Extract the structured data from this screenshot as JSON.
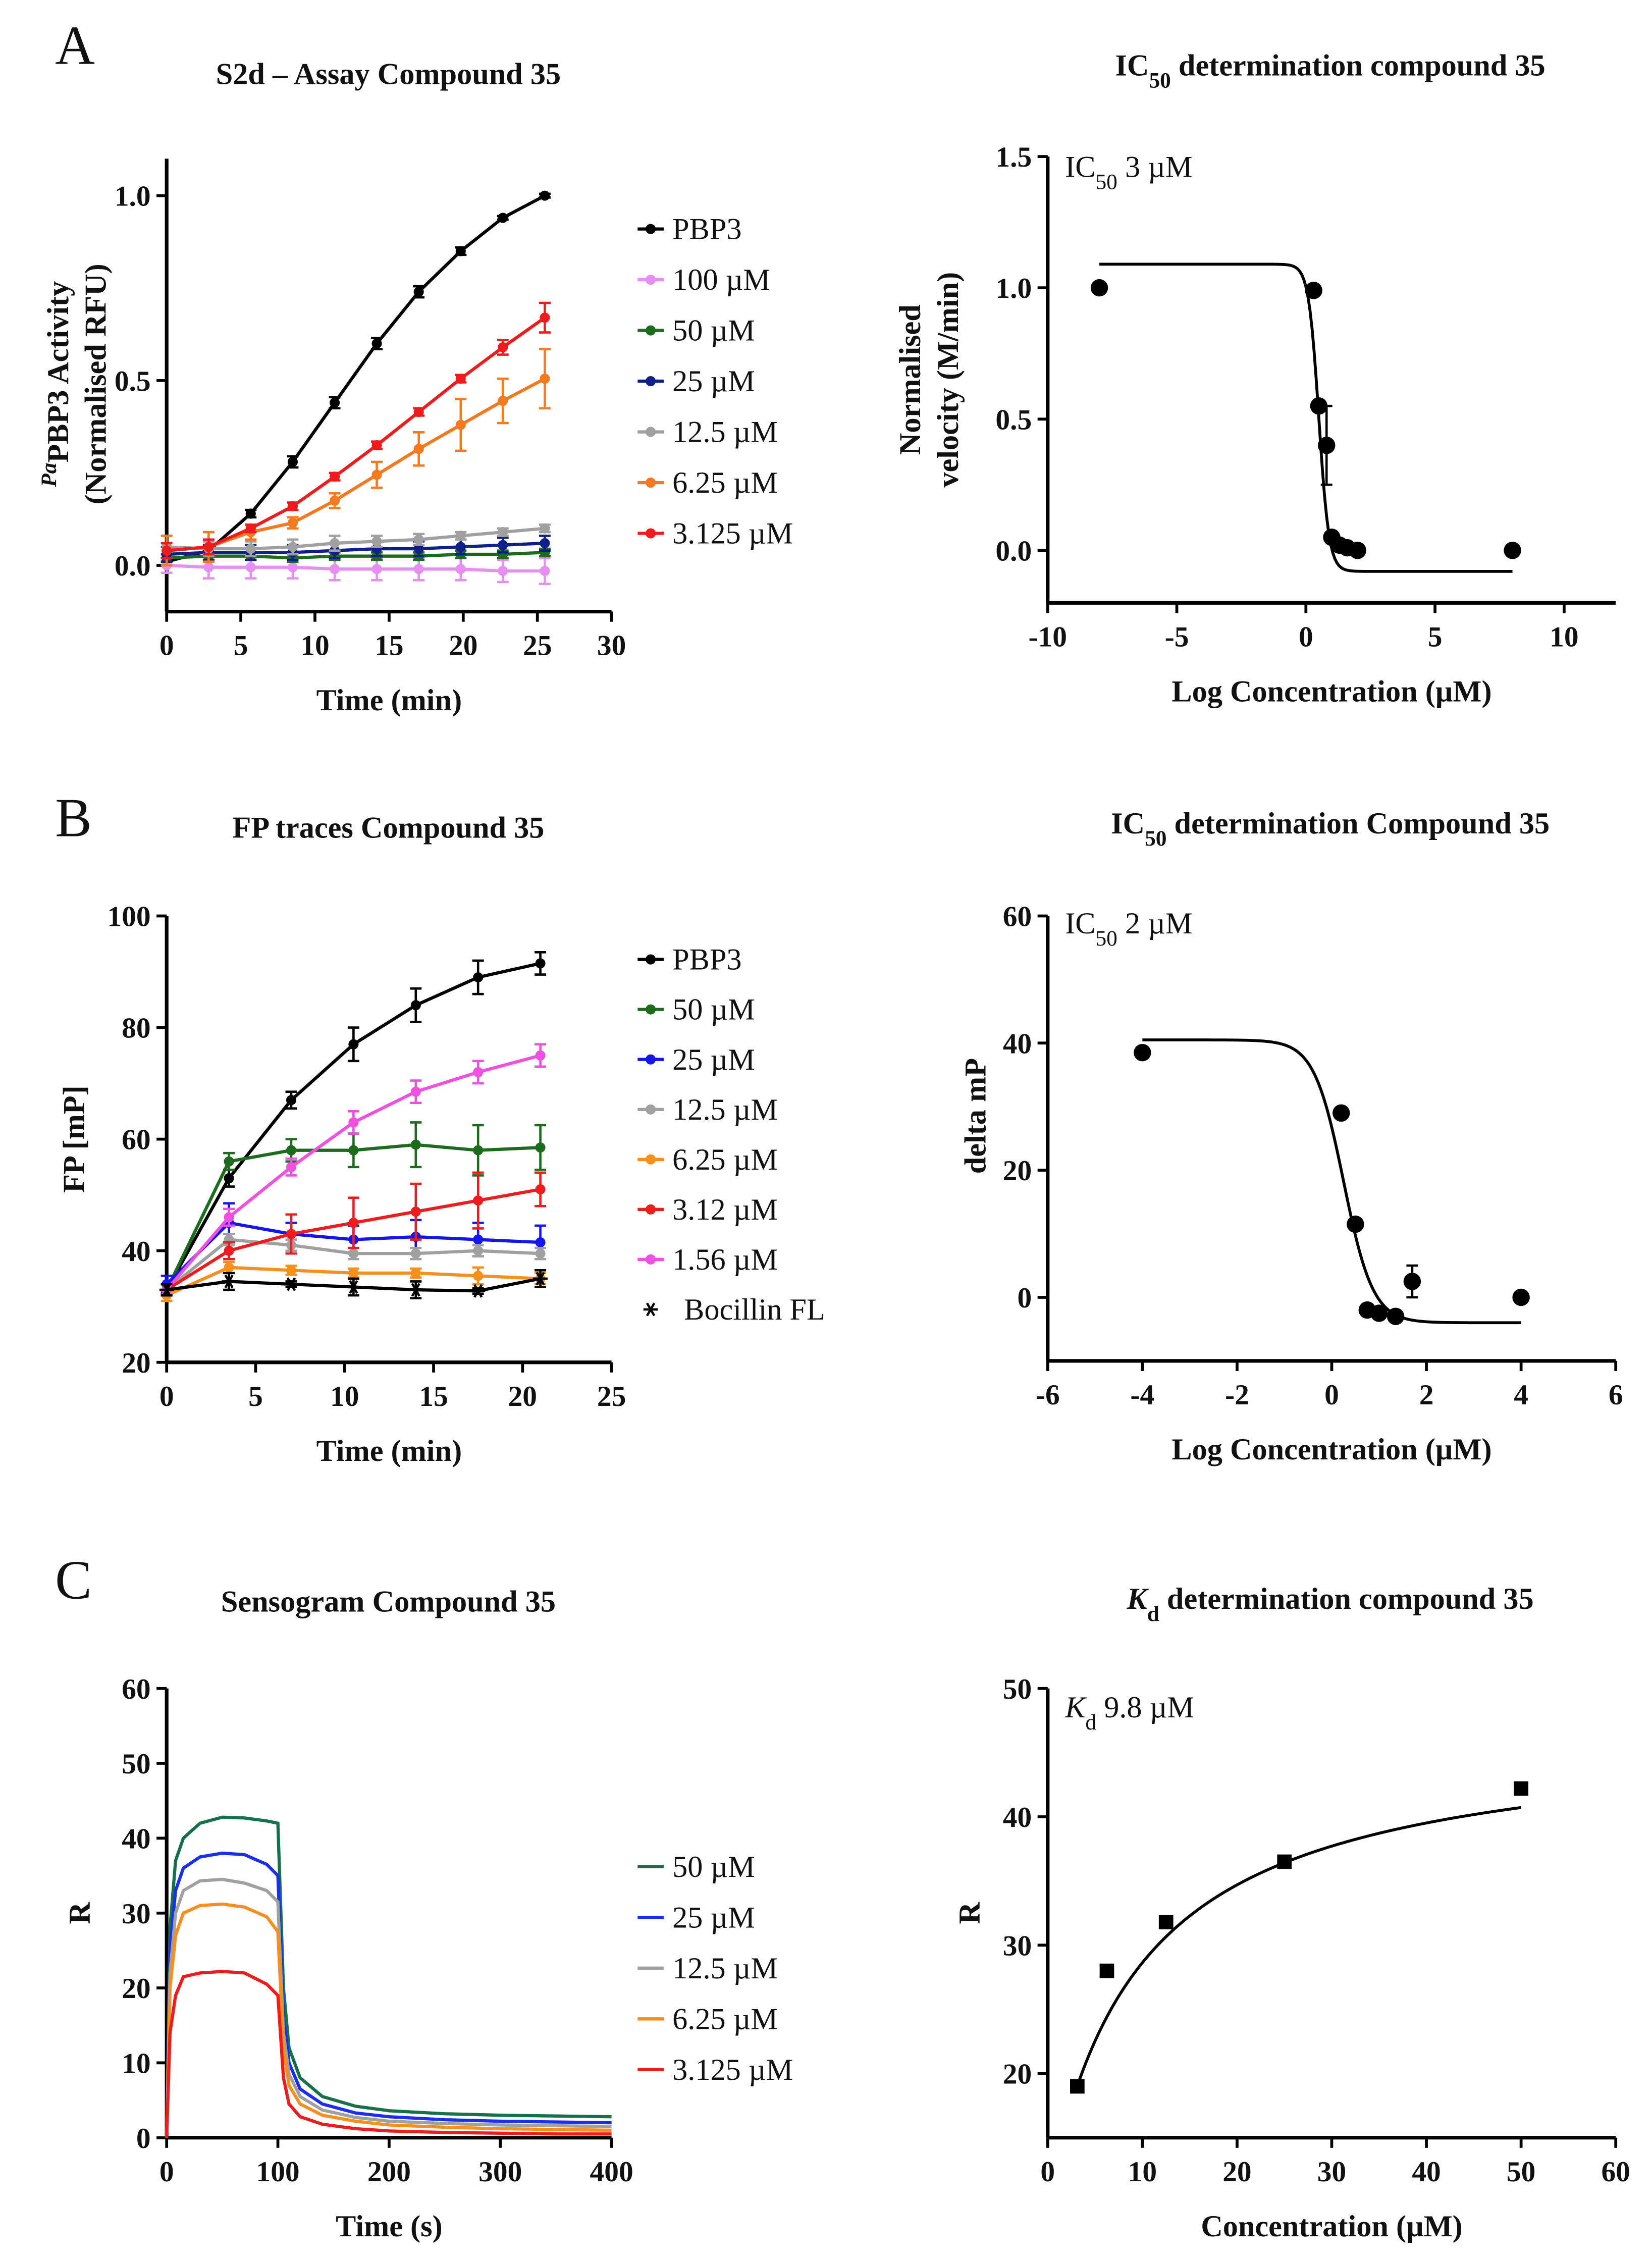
{
  "chart_data": [
    {
      "panel": "A",
      "type": "line",
      "title_parts": [
        {
          "t": "S2d – Assay Compound 35"
        }
      ],
      "xlabel": "Time (min)",
      "ylabel_parts": [
        [
          {
            "t": "Pa",
            "sup": true
          },
          {
            "t": "PBP3 Activity"
          }
        ],
        [
          {
            "t": "(Normalised RFU)"
          }
        ]
      ],
      "xlim": [
        0,
        30
      ],
      "ylim": [
        -0.125,
        1.1
      ],
      "xticks": [
        "0",
        "5",
        "10",
        "15",
        "20",
        "25",
        "30"
      ],
      "xtick_values": [
        0,
        5,
        10,
        15,
        20,
        25,
        30
      ],
      "yticks": [
        "0.0",
        "0.5",
        "1.0"
      ],
      "ytick_values": [
        0,
        0.5,
        1.0
      ],
      "legend": "right",
      "x": [
        0,
        2.83,
        5.67,
        8.5,
        11.33,
        14.17,
        17,
        19.83,
        22.67,
        25.5
      ],
      "series": [
        {
          "name": "PBP3",
          "color": "#000000",
          "marker": "circle",
          "y": [
            0.01,
            0.04,
            0.14,
            0.28,
            0.44,
            0.6,
            0.74,
            0.85,
            0.94,
            1.0
          ],
          "err": [
            0.01,
            0.01,
            0.01,
            0.015,
            0.015,
            0.015,
            0.015,
            0.01,
            0.005,
            0.005
          ]
        },
        {
          "name": "100 µM",
          "color": "#e58ff0",
          "marker": "circle",
          "y": [
            0,
            -0.005,
            -0.005,
            -0.005,
            -0.01,
            -0.01,
            -0.01,
            -0.01,
            -0.015,
            -0.015
          ],
          "err": [
            0.02,
            0.03,
            0.03,
            0.03,
            0.03,
            0.03,
            0.03,
            0.03,
            0.03,
            0.035
          ]
        },
        {
          "name": "50 µM",
          "color": "#1d6b1d",
          "marker": "circle",
          "y": [
            0.02,
            0.025,
            0.025,
            0.02,
            0.025,
            0.025,
            0.025,
            0.03,
            0.03,
            0.035
          ],
          "err": [
            0.01,
            0.01,
            0.01,
            0.01,
            0.01,
            0.01,
            0.01,
            0.01,
            0.01,
            0.01
          ]
        },
        {
          "name": "25 µM",
          "color": "#10208a",
          "marker": "circle",
          "y": [
            0.03,
            0.035,
            0.035,
            0.035,
            0.04,
            0.045,
            0.045,
            0.05,
            0.055,
            0.06
          ],
          "err": [
            0.02,
            0.02,
            0.02,
            0.02,
            0.02,
            0.02,
            0.02,
            0.02,
            0.02,
            0.02
          ]
        },
        {
          "name": "12.5 µM",
          "color": "#a0a0a0",
          "marker": "circle",
          "y": [
            0.05,
            0.045,
            0.045,
            0.05,
            0.06,
            0.065,
            0.07,
            0.08,
            0.09,
            0.1
          ],
          "err": [
            0.03,
            0.02,
            0.02,
            0.02,
            0.02,
            0.015,
            0.015,
            0.01,
            0.01,
            0.01
          ]
        },
        {
          "name": "6.25 µM",
          "color": "#f57a1f",
          "marker": "circle",
          "y": [
            0.04,
            0.05,
            0.09,
            0.115,
            0.175,
            0.245,
            0.315,
            0.38,
            0.445,
            0.505
          ],
          "err": [
            0.04,
            0.04,
            0.02,
            0.015,
            0.02,
            0.035,
            0.045,
            0.07,
            0.06,
            0.08
          ]
        },
        {
          "name": "3.125 µM",
          "color": "#ee1c1c",
          "marker": "circle",
          "y": [
            0.04,
            0.05,
            0.1,
            0.16,
            0.24,
            0.325,
            0.415,
            0.505,
            0.59,
            0.67
          ],
          "err": [
            0.02,
            0.02,
            0.01,
            0.01,
            0.01,
            0.01,
            0.01,
            0.01,
            0.02,
            0.04
          ]
        }
      ]
    },
    {
      "type": "scatter",
      "title_parts": [
        {
          "t": "IC"
        },
        {
          "t": "50",
          "sub": true
        },
        {
          "t": " determination compound 35"
        }
      ],
      "annotation_parts": [
        {
          "t": "IC"
        },
        {
          "t": "50",
          "sub": true
        },
        {
          "t": " 3 µM"
        }
      ],
      "xlabel": "Log Concentration (µM)",
      "ylabel_parts": [
        [
          {
            "t": "Normalised"
          }
        ],
        [
          {
            "t": "velocity (M/min)"
          }
        ]
      ],
      "xlim": [
        -10,
        12
      ],
      "ylim": [
        -0.2,
        1.5
      ],
      "xticks": [
        "-10",
        "-5",
        "0",
        "5",
        "10"
      ],
      "xtick_values": [
        -10,
        -5,
        0,
        5,
        10
      ],
      "yticks": [
        "0.0",
        "0.5",
        "1.0",
        "1.5"
      ],
      "ytick_values": [
        0,
        0.5,
        1.0,
        1.5
      ],
      "x": [
        -8,
        0.3,
        0.5,
        0.8,
        1.0,
        1.3,
        1.6,
        2.0,
        8
      ],
      "series": [
        {
          "color": "#000000",
          "marker": "circle",
          "y": [
            1.0,
            0.99,
            0.55,
            0.4,
            0.05,
            0.02,
            0.01,
            0.0,
            0.0
          ],
          "err": [
            0,
            0,
            0,
            0.15,
            0,
            0,
            0,
            0,
            0
          ],
          "fit": "sigmoid"
        }
      ]
    },
    {
      "panel": "B",
      "type": "line",
      "title_parts": [
        {
          "t": "FP traces Compound 35"
        }
      ],
      "xlabel": "Time (min)",
      "ylabel_parts": [
        [
          {
            "t": "FP [mP]"
          }
        ]
      ],
      "xlim": [
        0,
        25
      ],
      "ylim": [
        20,
        100
      ],
      "xticks": [
        "0",
        "5",
        "10",
        "15",
        "20",
        "25"
      ],
      "xtick_values": [
        0,
        5,
        10,
        15,
        20,
        25
      ],
      "yticks": [
        "20",
        "40",
        "60",
        "80",
        "100"
      ],
      "ytick_values": [
        20,
        40,
        60,
        80,
        100
      ],
      "legend": "right",
      "x": [
        0,
        3.5,
        7,
        10.5,
        14,
        17.5,
        21
      ],
      "series": [
        {
          "name": "PBP3",
          "color": "#000000",
          "marker": "circle",
          "y": [
            33,
            53,
            67,
            77,
            84,
            89,
            91.5
          ],
          "err": [
            1,
            1.5,
            1.5,
            3,
            3,
            3,
            2
          ]
        },
        {
          "name": "50 µM",
          "color": "#1d6b1d",
          "marker": "circle",
          "y": [
            33,
            56,
            58,
            58,
            59,
            58,
            58.5
          ],
          "err": [
            1,
            1.5,
            2,
            3,
            4,
            4.5,
            4
          ]
        },
        {
          "name": "25 µM",
          "color": "#1515f0",
          "marker": "circle",
          "y": [
            34,
            45,
            43,
            42,
            42.5,
            42,
            41.5
          ],
          "err": [
            1.5,
            3.5,
            2,
            2.5,
            3,
            3,
            3
          ]
        },
        {
          "name": "12.5 µM",
          "color": "#a0a0a0",
          "marker": "circle",
          "y": [
            33,
            42,
            41,
            39.5,
            39.5,
            40,
            39.5
          ],
          "err": [
            1,
            1,
            1,
            1,
            1,
            1,
            1
          ]
        },
        {
          "name": "6.25 µM",
          "color": "#f5901f",
          "marker": "circle",
          "y": [
            32,
            37,
            36.5,
            36,
            36,
            35.5,
            35
          ],
          "err": [
            1,
            1,
            0.8,
            0.8,
            0.8,
            1.5,
            1
          ]
        },
        {
          "name": "3.12 µM",
          "color": "#ee1c1c",
          "marker": "circle",
          "y": [
            33,
            40,
            43,
            45,
            47,
            49,
            51
          ],
          "err": [
            1,
            1.5,
            3.5,
            4.5,
            5,
            5,
            3
          ]
        },
        {
          "name": "1.56 µM",
          "color": "#f050e0",
          "marker": "circle",
          "y": [
            33,
            46,
            55,
            63,
            68.5,
            72,
            75
          ],
          "err": [
            1,
            1.5,
            1.5,
            2,
            2,
            2,
            2
          ]
        },
        {
          "name": "Bocillin FL",
          "color": "#000000",
          "marker": "asterisk",
          "y": [
            33,
            34.5,
            34,
            33.5,
            33,
            32.8,
            35
          ],
          "err": [
            1,
            1.5,
            0.5,
            1.5,
            1.5,
            0.5,
            1.5
          ]
        }
      ]
    },
    {
      "type": "scatter",
      "title_parts": [
        {
          "t": "IC"
        },
        {
          "t": "50",
          "sub": true
        },
        {
          "t": " determination Compound 35"
        }
      ],
      "annotation_parts": [
        {
          "t": "IC"
        },
        {
          "t": "50",
          "sub": true
        },
        {
          "t": " 2 µM"
        }
      ],
      "xlabel": "Log Concentration (µM)",
      "ylabel_parts": [
        [
          {
            "t": "delta mP"
          }
        ]
      ],
      "xlim": [
        -6,
        6
      ],
      "ylim": [
        -10,
        60
      ],
      "xticks": [
        "-6",
        "-4",
        "-2",
        "0",
        "2",
        "4",
        "6"
      ],
      "xtick_values": [
        -6,
        -4,
        -2,
        0,
        2,
        4,
        6
      ],
      "yticks": [
        "0",
        "20",
        "40",
        "60"
      ],
      "ytick_values": [
        0,
        20,
        40,
        60
      ],
      "x": [
        -4,
        0.2,
        0.5,
        0.75,
        1.0,
        1.35,
        1.7,
        4
      ],
      "series": [
        {
          "color": "#000000",
          "marker": "circle",
          "y": [
            38.5,
            29,
            11.5,
            -2,
            -2.5,
            -3,
            2.5,
            0
          ],
          "err": [
            0,
            0,
            0,
            0,
            0,
            0,
            2.5,
            0
          ],
          "fit": "sigmoid"
        }
      ]
    },
    {
      "panel": "C",
      "type": "line",
      "title_parts": [
        {
          "t": "Sensogram Compound 35"
        }
      ],
      "xlabel": "Time (s)",
      "ylabel_parts": [
        [
          {
            "t": "R"
          }
        ]
      ],
      "xlim": [
        0,
        400
      ],
      "ylim": [
        0,
        60
      ],
      "xticks": [
        "0",
        "100",
        "200",
        "300",
        "400"
      ],
      "xtick_values": [
        0,
        100,
        200,
        300,
        400
      ],
      "yticks": [
        "0",
        "10",
        "20",
        "30",
        "40",
        "50",
        "60"
      ],
      "ytick_values": [
        0,
        10,
        20,
        30,
        40,
        50,
        60
      ],
      "legend": "right",
      "x": [
        0,
        3,
        8,
        15,
        30,
        50,
        70,
        90,
        100,
        105,
        110,
        120,
        140,
        170,
        200,
        250,
        300,
        350,
        400
      ],
      "series": [
        {
          "name": "50 µM",
          "color": "#16704a",
          "marker": "none",
          "y": [
            0,
            28,
            37,
            40,
            42,
            42.8,
            42.7,
            42.3,
            42,
            20,
            12,
            8,
            5.5,
            4.2,
            3.6,
            3.2,
            3.0,
            2.9,
            2.8
          ]
        },
        {
          "name": "25 µM",
          "color": "#1a2ef0",
          "marker": "none",
          "y": [
            0,
            25,
            33,
            36,
            37.5,
            38,
            37.8,
            36.5,
            35,
            16,
            10,
            6.5,
            4.5,
            3.3,
            2.8,
            2.4,
            2.2,
            2.1,
            2.0
          ]
        },
        {
          "name": "12.5 µM",
          "color": "#a0a0a0",
          "marker": "none",
          "y": [
            0,
            22,
            30,
            33,
            34.3,
            34.5,
            34,
            33,
            31.5,
            14,
            8.5,
            5.5,
            3.7,
            2.7,
            2.2,
            1.9,
            1.7,
            1.6,
            1.5
          ]
        },
        {
          "name": "6.25 µM",
          "color": "#f5901f",
          "marker": "none",
          "y": [
            0,
            20,
            27,
            30,
            31,
            31.2,
            30.8,
            29.5,
            27.5,
            12,
            7,
            4.5,
            3,
            2.2,
            1.7,
            1.4,
            1.2,
            1.1,
            1.0
          ]
        },
        {
          "name": "3.125 µM",
          "color": "#ee1c1c",
          "marker": "none",
          "y": [
            0,
            14,
            19,
            21.5,
            22,
            22.2,
            22,
            20.5,
            19,
            8,
            4.5,
            2.8,
            1.8,
            1.2,
            0.9,
            0.7,
            0.6,
            0.5,
            0.5
          ]
        }
      ]
    },
    {
      "type": "scatter",
      "title_parts": [
        {
          "t": "K",
          "it": true
        },
        {
          "t": "d",
          "sub": true
        },
        {
          "t": " determination compound 35"
        }
      ],
      "annotation_parts": [
        {
          "t": "K",
          "it": true
        },
        {
          "t": "d",
          "sub": true
        },
        {
          "t": " 9.8 µM"
        }
      ],
      "xlabel": "Concentration (µM)",
      "ylabel_parts": [
        [
          {
            "t": "R"
          }
        ]
      ],
      "xlim": [
        0,
        60
      ],
      "ylim": [
        15,
        50
      ],
      "xticks": [
        "0",
        "10",
        "20",
        "30",
        "40",
        "50",
        "60"
      ],
      "xtick_values": [
        0,
        10,
        20,
        30,
        40,
        50,
        60
      ],
      "yticks": [
        "20",
        "30",
        "40",
        "50"
      ],
      "ytick_values": [
        20,
        30,
        40,
        50
      ],
      "x": [
        3.125,
        6.25,
        12.5,
        25,
        50
      ],
      "series": [
        {
          "color": "#000000",
          "marker": "square",
          "y": [
            19,
            28,
            31.8,
            36.5,
            42.2
          ],
          "fit": "hyperbola"
        }
      ]
    }
  ]
}
